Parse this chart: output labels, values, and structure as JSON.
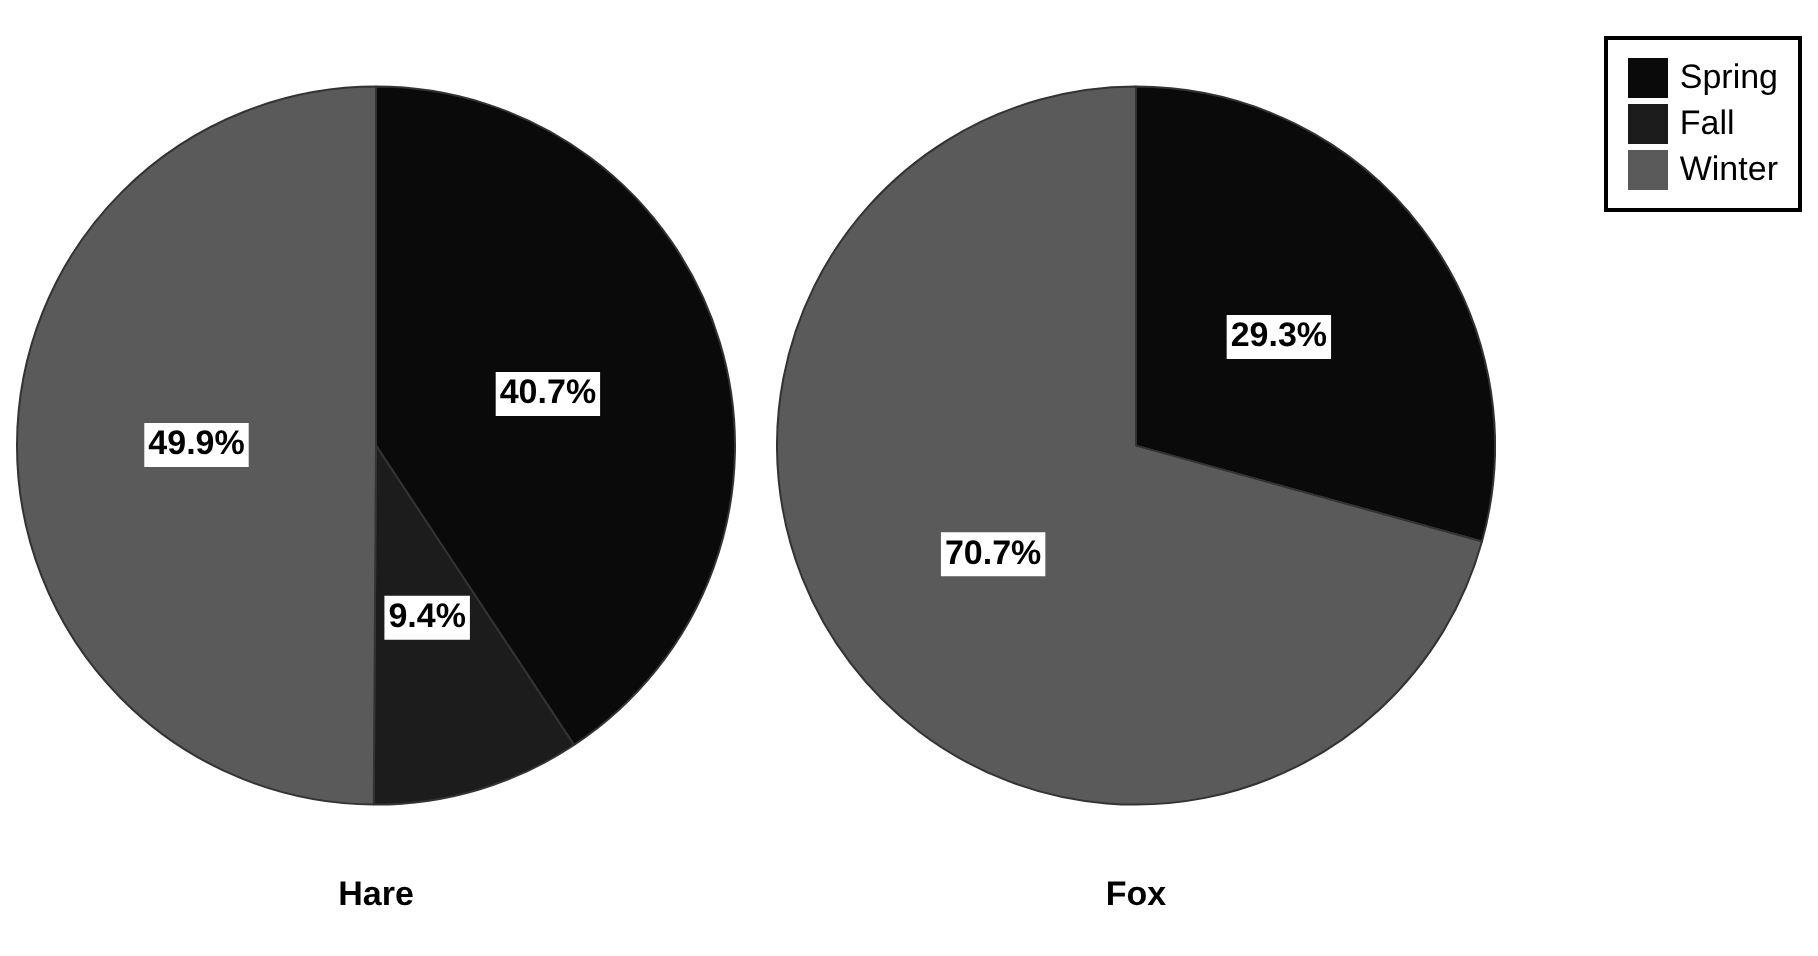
{
  "chart_data": [
    {
      "type": "pie",
      "title": "Hare",
      "categories": [
        "Spring",
        "Fall",
        "Winter"
      ],
      "values": [
        40.7,
        9.4,
        49.9
      ],
      "colors": [
        "#0a0a0a",
        "#1c1c1c",
        "#5a5a5a"
      ],
      "value_labels": [
        "40.7%",
        "9.4%",
        "49.9%"
      ],
      "legend": "top right"
    },
    {
      "type": "pie",
      "title": "Fox",
      "categories": [
        null,
        null,
        null
      ],
      "values": [
        29.3,
        0,
        70.7
      ],
      "colors": [
        "#0a0a0a",
        "#1c1c1c",
        "#5a5a5a"
      ],
      "value_labels": [
        "29.3%",
        null,
        "70.7%"
      ]
    }
  ]
}
